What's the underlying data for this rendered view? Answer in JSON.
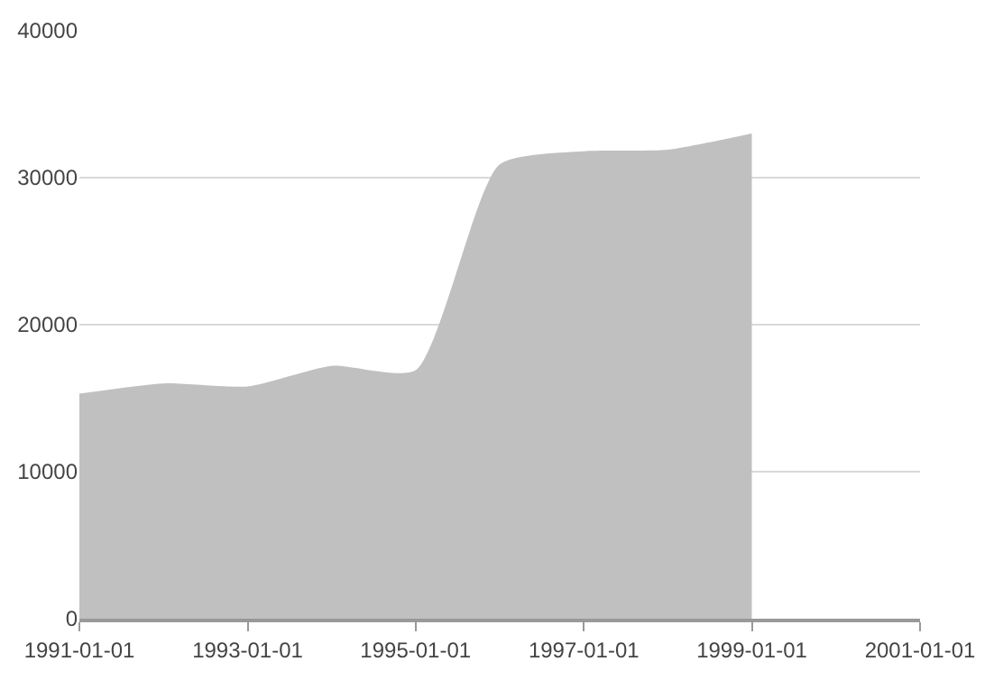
{
  "chart_data": {
    "type": "area",
    "x": [
      "1991-01-01",
      "1992-01-01",
      "1993-01-01",
      "1994-01-01",
      "1995-01-01",
      "1996-01-01",
      "1997-01-01",
      "1998-01-01",
      "1999-01-01"
    ],
    "series": [
      {
        "color": "#c0c0c0",
        "values": [
          15300,
          16000,
          15800,
          17200,
          16900,
          30900,
          31800,
          31900,
          33000
        ]
      }
    ],
    "xlim": [
      "1991-01-01",
      "2001-01-01"
    ],
    "xticks": [
      {
        "value": "1991-01-01",
        "label": "1991-01-01"
      },
      {
        "value": "1993-01-01",
        "label": "1993-01-01"
      },
      {
        "value": "1995-01-01",
        "label": "1995-01-01"
      },
      {
        "value": "1997-01-01",
        "label": "1997-01-01"
      },
      {
        "value": "1999-01-01",
        "label": "1999-01-01"
      },
      {
        "value": "2001-01-01",
        "label": "2001-01-01"
      }
    ],
    "ylim": [
      0,
      40000
    ],
    "yticks": [
      0,
      10000,
      20000,
      30000,
      40000
    ],
    "grid": "y"
  }
}
